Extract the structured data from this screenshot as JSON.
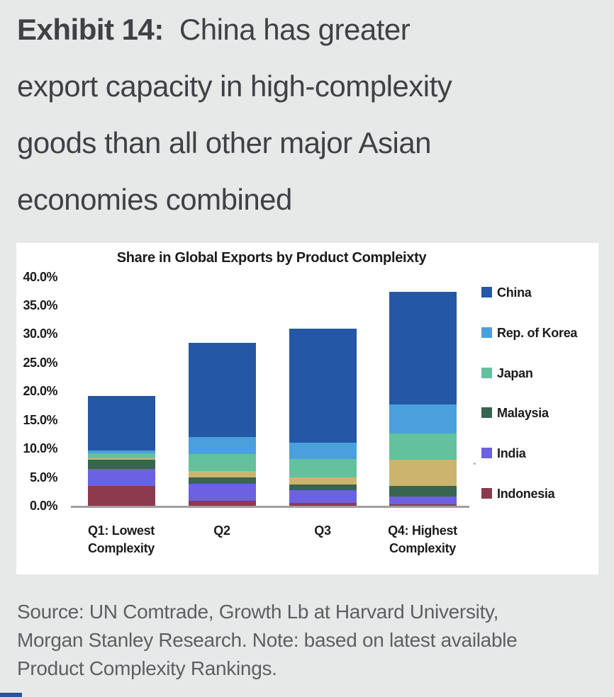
{
  "page": {
    "background": "#e7e9e9"
  },
  "header": {
    "label_bold": "Exhibit 14:",
    "title_lines": [
      "China has greater",
      "export capacity in high-complexity",
      "goods than all other major Asian",
      "economies combined"
    ],
    "text_color": "#3f4245"
  },
  "figure": {
    "background": "#ffffff",
    "axis_line_color": "#9ea0a0"
  },
  "chart_data": {
    "type": "bar",
    "stacked": true,
    "title": "Share in Global Exports by Product Compleixty",
    "categories": [
      "Q1: Lowest Complexity",
      "Q2",
      "Q3",
      "Q4: Highest Complexity"
    ],
    "category_label_lines": [
      [
        "Q1: Lowest",
        "Complexity"
      ],
      [
        "Q2"
      ],
      [
        "Q3"
      ],
      [
        "Q4: Highest",
        "Complexity"
      ]
    ],
    "unit": "percent share",
    "ylim": [
      0,
      40
    ],
    "ytick_step": 5,
    "ytick_labels": [
      "0.0%",
      "5.0%",
      "10.0%",
      "15.0%",
      "20.0%",
      "25.0%",
      "30.0%",
      "35.0%",
      "40.0%"
    ],
    "grid": false,
    "legend_position": "right",
    "series_stack_order": "bottom-to-top",
    "series": [
      {
        "name": "Indonesia",
        "color": "#8d3a4e",
        "in_legend": true,
        "values": [
          3.5,
          0.9,
          0.5,
          0.2
        ]
      },
      {
        "name": "India",
        "color": "#6b61e2",
        "in_legend": true,
        "values": [
          2.9,
          2.9,
          2.2,
          1.4
        ]
      },
      {
        "name": "Malaysia",
        "color": "#37654f",
        "in_legend": true,
        "values": [
          1.6,
          1.2,
          1.0,
          1.9
        ]
      },
      {
        "name": "",
        "color": "#cdb46e",
        "in_legend": false,
        "values": [
          0.3,
          1.1,
          1.3,
          4.5
        ]
      },
      {
        "name": "Japan",
        "color": "#64c19e",
        "in_legend": true,
        "values": [
          0.8,
          2.9,
          3.1,
          4.6
        ]
      },
      {
        "name": "Rep. of Korea",
        "color": "#4aa0dc",
        "in_legend": true,
        "values": [
          0.5,
          3.0,
          2.9,
          5.1
        ]
      },
      {
        "name": "China",
        "color": "#2458a4",
        "in_legend": true,
        "values": [
          9.6,
          16.4,
          19.9,
          19.7
        ]
      }
    ],
    "stack_totals": [
      19.2,
      28.4,
      30.9,
      37.4
    ],
    "legend_order_top_to_bottom": [
      "China",
      "Rep. of Korea",
      "Japan",
      "Malaysia",
      "India",
      "Indonesia"
    ]
  },
  "source_note": {
    "lines": [
      "Source: UN Comtrade, Growth Lb at Harvard University,",
      "Morgan Stanley Research. Note: based on latest available",
      "Product Complexity Rankings."
    ],
    "text_color": "#5c6063"
  }
}
